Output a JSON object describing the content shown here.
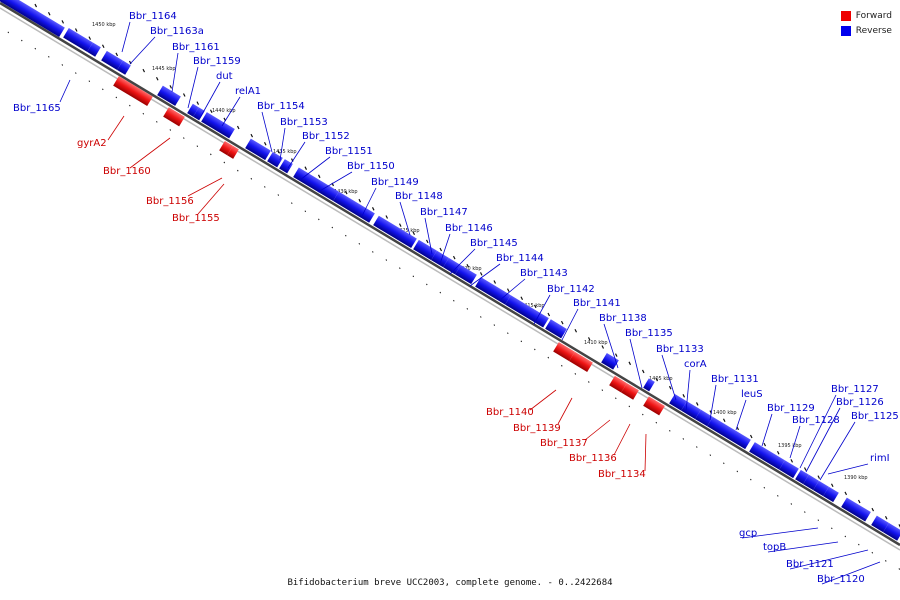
{
  "colors": {
    "forward": "#ee0000",
    "reverse": "#0000ee",
    "forward_label": "#cc0000",
    "reverse_label": "#0000cc"
  },
  "legend": {
    "forward": "Forward",
    "reverse": "Reverse"
  },
  "caption": "Bifidobacterium breve UCC2003, complete genome. - 0..2422684",
  "scale_labels": [
    "1450 kbp",
    "1445 kbp",
    "1440 kbp",
    "1435 kbp",
    "1430 kbp",
    "1425 kbp",
    "1420 kbp",
    "1415 kbp",
    "1410 kbp",
    "1405 kbp",
    "1400 kbp",
    "1395 kbp",
    "1390 kbp"
  ],
  "forward_genes": [
    "gyrA2",
    "Bbr_1160",
    "Bbr_1156",
    "Bbr_1155",
    "Bbr_1140",
    "Bbr_1139",
    "Bbr_1137",
    "Bbr_1136",
    "Bbr_1134"
  ],
  "reverse_genes": [
    "Bbr_1165",
    "Bbr_1164",
    "Bbr_1163a",
    "Bbr_1161",
    "Bbr_1159",
    "dut",
    "relA1",
    "Bbr_1154",
    "Bbr_1153",
    "Bbr_1152",
    "Bbr_1151",
    "Bbr_1150",
    "Bbr_1149",
    "Bbr_1148",
    "Bbr_1147",
    "Bbr_1146",
    "Bbr_1145",
    "Bbr_1144",
    "Bbr_1143",
    "Bbr_1142",
    "Bbr_1141",
    "Bbr_1138",
    "Bbr_1135",
    "Bbr_1133",
    "corA",
    "Bbr_1131",
    "leuS",
    "Bbr_1129",
    "Bbr_1128",
    "Bbr_1127",
    "Bbr_1126",
    "Bbr_1125",
    "rimI",
    "gcp",
    "topB",
    "Bbr_1121",
    "Bbr_1120"
  ]
}
